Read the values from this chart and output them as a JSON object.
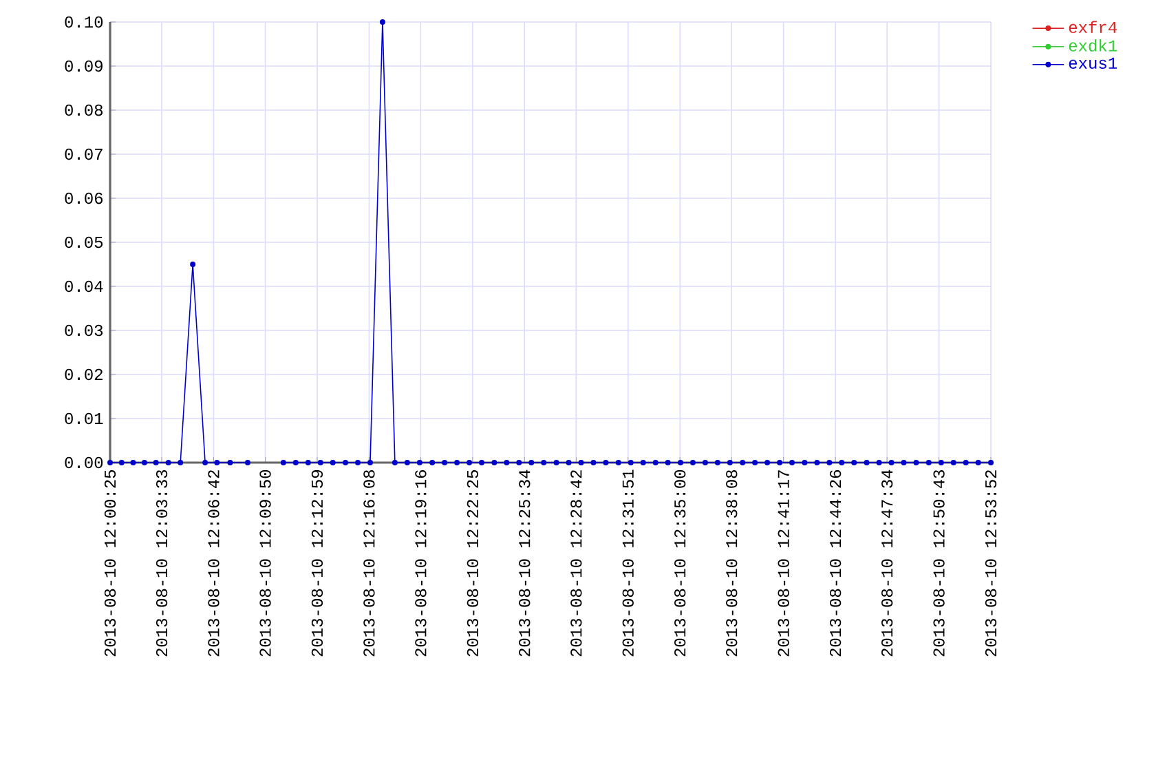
{
  "chart_data": {
    "type": "line",
    "x": [
      "2013-08-10T12:00:25",
      "2013-08-10T12:01:07",
      "2013-08-10T12:01:49",
      "2013-08-10T12:02:30",
      "2013-08-10T12:03:12",
      "2013-08-10T12:03:57",
      "2013-08-10T12:04:41",
      "2013-08-10T12:05:26",
      "2013-08-10T12:06:11",
      "2013-08-10T12:06:54",
      "2013-08-10T12:07:42",
      "2013-08-10T12:08:46",
      "2013-08-10T12:10:00",
      "2013-08-10T12:10:56",
      "2013-08-10T12:11:41",
      "2013-08-10T12:12:26",
      "2013-08-10T12:13:11",
      "2013-08-10T12:13:56",
      "2013-08-10T12:14:42",
      "2013-08-10T12:15:27",
      "2013-08-10T12:16:12",
      "2013-08-10T12:16:57",
      "2013-08-10T12:17:42",
      "2013-08-10T12:18:27",
      "2013-08-10T12:19:12",
      "2013-08-10T12:19:58",
      "2013-08-10T12:20:43",
      "2013-08-10T12:21:28",
      "2013-08-10T12:22:13",
      "2013-08-10T12:22:58",
      "2013-08-10T12:23:44",
      "2013-08-10T12:24:29",
      "2013-08-10T12:25:14",
      "2013-08-10T12:25:59",
      "2013-08-10T12:26:44",
      "2013-08-10T12:27:30",
      "2013-08-10T12:28:15",
      "2013-08-10T12:29:00",
      "2013-08-10T12:29:45",
      "2013-08-10T12:30:30",
      "2013-08-10T12:31:16",
      "2013-08-10T12:32:01",
      "2013-08-10T12:32:46",
      "2013-08-10T12:33:31",
      "2013-08-10T12:34:16",
      "2013-08-10T12:35:02",
      "2013-08-10T12:35:47",
      "2013-08-10T12:36:32",
      "2013-08-10T12:37:17",
      "2013-08-10T12:38:02",
      "2013-08-10T12:38:48",
      "2013-08-10T12:39:33",
      "2013-08-10T12:40:18",
      "2013-08-10T12:41:03",
      "2013-08-10T12:41:48",
      "2013-08-10T12:42:34",
      "2013-08-10T12:43:19",
      "2013-08-10T12:44:04",
      "2013-08-10T12:44:49",
      "2013-08-10T12:45:34",
      "2013-08-10T12:46:20",
      "2013-08-10T12:47:05",
      "2013-08-10T12:47:50",
      "2013-08-10T12:48:35",
      "2013-08-10T12:49:20",
      "2013-08-10T12:50:06",
      "2013-08-10T12:50:51",
      "2013-08-10T12:51:36",
      "2013-08-10T12:52:21",
      "2013-08-10T12:53:06",
      "2013-08-10T12:53:52"
    ],
    "series": [
      {
        "name": "exfr4",
        "color": "#dd2222",
        "values": [
          null,
          null,
          null,
          null,
          null,
          null,
          null,
          null,
          null,
          null,
          null,
          null,
          null,
          null,
          null,
          null,
          null,
          null,
          null,
          null,
          null,
          null,
          null,
          null,
          null,
          null,
          null,
          null,
          null,
          null,
          null,
          null,
          null,
          null,
          null,
          null,
          null,
          null,
          null,
          null,
          null,
          null,
          null,
          null,
          null,
          null,
          null,
          null,
          null,
          null,
          null,
          null,
          null,
          null,
          null,
          null,
          null,
          null,
          null,
          null,
          null,
          null,
          null,
          null,
          null,
          null,
          null,
          null,
          null,
          null,
          null
        ]
      },
      {
        "name": "exdk1",
        "color": "#33cc33",
        "values": [
          null,
          null,
          null,
          null,
          null,
          null,
          null,
          null,
          null,
          null,
          null,
          null,
          null,
          null,
          null,
          null,
          null,
          null,
          null,
          null,
          null,
          null,
          null,
          null,
          null,
          null,
          null,
          null,
          null,
          null,
          null,
          null,
          null,
          null,
          null,
          null,
          null,
          null,
          null,
          null,
          null,
          null,
          null,
          null,
          null,
          null,
          null,
          null,
          null,
          null,
          null,
          null,
          null,
          null,
          null,
          null,
          null,
          null,
          null,
          null,
          null,
          null,
          null,
          null,
          null,
          null,
          null,
          null,
          null,
          null,
          null
        ]
      },
      {
        "name": "exus1",
        "color": "#0000cc",
        "values": [
          0,
          0,
          0,
          0,
          0,
          0,
          0,
          0.045,
          0,
          0,
          0,
          0,
          null,
          0,
          0,
          0,
          0,
          0,
          0,
          0,
          0,
          0.1,
          0,
          0,
          0,
          0,
          0,
          0,
          0,
          0,
          0,
          0,
          0,
          0,
          0,
          0,
          0,
          0,
          0,
          0,
          0,
          0,
          0,
          0,
          0,
          0,
          0,
          0,
          0,
          0,
          0,
          0,
          0,
          0,
          0,
          0,
          0,
          0,
          0,
          0,
          0,
          0,
          0,
          0,
          0,
          0,
          0,
          0,
          0,
          0,
          0
        ]
      }
    ],
    "xlim": [
      "2013-08-10T12:00:25",
      "2013-08-10T12:53:52"
    ],
    "xticks": [
      {
        "value": "2013-08-10T12:00:25",
        "label": "2013-08-10 12:00:25"
      },
      {
        "value": "2013-08-10T12:03:33",
        "label": "2013-08-10 12:03:33"
      },
      {
        "value": "2013-08-10T12:06:42",
        "label": "2013-08-10 12:06:42"
      },
      {
        "value": "2013-08-10T12:09:50",
        "label": "2013-08-10 12:09:50"
      },
      {
        "value": "2013-08-10T12:12:59",
        "label": "2013-08-10 12:12:59"
      },
      {
        "value": "2013-08-10T12:16:08",
        "label": "2013-08-10 12:16:08"
      },
      {
        "value": "2013-08-10T12:19:16",
        "label": "2013-08-10 12:19:16"
      },
      {
        "value": "2013-08-10T12:22:25",
        "label": "2013-08-10 12:22:25"
      },
      {
        "value": "2013-08-10T12:25:34",
        "label": "2013-08-10 12:25:34"
      },
      {
        "value": "2013-08-10T12:28:42",
        "label": "2013-08-10 12:28:42"
      },
      {
        "value": "2013-08-10T12:31:51",
        "label": "2013-08-10 12:31:51"
      },
      {
        "value": "2013-08-10T12:35:00",
        "label": "2013-08-10 12:35:00"
      },
      {
        "value": "2013-08-10T12:38:08",
        "label": "2013-08-10 12:38:08"
      },
      {
        "value": "2013-08-10T12:41:17",
        "label": "2013-08-10 12:41:17"
      },
      {
        "value": "2013-08-10T12:44:26",
        "label": "2013-08-10 12:44:26"
      },
      {
        "value": "2013-08-10T12:47:34",
        "label": "2013-08-10 12:47:34"
      },
      {
        "value": "2013-08-10T12:50:43",
        "label": "2013-08-10 12:50:43"
      },
      {
        "value": "2013-08-10T12:53:52",
        "label": "2013-08-10 12:53:52"
      }
    ],
    "ylim": [
      0,
      0.1
    ],
    "yticks": [
      {
        "value": 0,
        "label": "0.00"
      },
      {
        "value": 0.01,
        "label": "0.01"
      },
      {
        "value": 0.02,
        "label": "0.02"
      },
      {
        "value": 0.03,
        "label": "0.03"
      },
      {
        "value": 0.04,
        "label": "0.04"
      },
      {
        "value": 0.05,
        "label": "0.05"
      },
      {
        "value": 0.06,
        "label": "0.06"
      },
      {
        "value": 0.07,
        "label": "0.07"
      },
      {
        "value": 0.08,
        "label": "0.08"
      },
      {
        "value": 0.09,
        "label": "0.09"
      },
      {
        "value": 0.1,
        "label": "0.10"
      }
    ],
    "grid": true,
    "legend": "top right",
    "marker": "circle",
    "line_style": "solid"
  }
}
